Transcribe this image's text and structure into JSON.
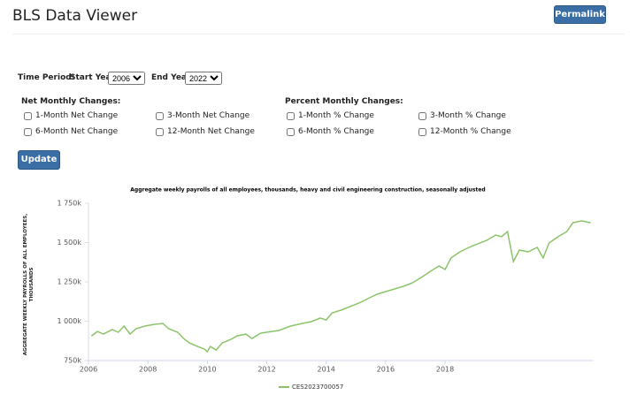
{
  "header": {
    "title": "BLS Data Viewer",
    "button": "Permalink"
  },
  "controls": {
    "time_period_label": "Time Period:",
    "start_year_label": "Start Year:",
    "start_year": "2006",
    "end_year_label": "End Year:",
    "end_year": "2022",
    "net_heading": "Net Monthly Changes:",
    "percent_heading": "Percent Monthly Changes:",
    "net_options": [
      "1-Month Net Change",
      "3-Month Net Change",
      "6-Month Net Change",
      "12-Month Net Change"
    ],
    "percent_options": [
      "1-Month % Change",
      "3-Month % Change",
      "6-Month % Change",
      "12-Month % Change"
    ],
    "update": "Update"
  },
  "chart_data": {
    "type": "line",
    "title": "Aggregate weekly payrolls of all employees, thousands, heavy and civil engineering construction, seasonally adjusted",
    "y_label": "AGGREGATE WEEKLY PAYROLLS OF ALL EMPLOYEES, THOUSANDS",
    "x": [
      2006.1,
      2006.3,
      2006.5,
      2006.8,
      2007.0,
      2007.2,
      2007.4,
      2007.6,
      2007.9,
      2008.2,
      2008.5,
      2008.7,
      2009.0,
      2009.2,
      2009.4,
      2009.6,
      2009.9,
      2010.0,
      2010.1,
      2010.3,
      2010.5,
      2010.8,
      2011.0,
      2011.3,
      2011.5,
      2011.8,
      2012.0,
      2012.4,
      2012.8,
      2013.2,
      2013.5,
      2013.8,
      2014.0,
      2014.2,
      2014.5,
      2014.8,
      2015.1,
      2015.4,
      2015.7,
      2016.0,
      2016.3,
      2016.6,
      2016.9,
      2017.2,
      2017.5,
      2017.8,
      2018.0,
      2018.2,
      2018.5,
      2018.8,
      2019.1,
      2019.4,
      2019.7,
      2019.9,
      2020.1,
      2020.3,
      2020.5,
      2020.8,
      2021.1,
      2021.3,
      2021.5,
      2021.8,
      2022.1,
      2022.3,
      2022.6,
      2022.9
    ],
    "series": [
      {
        "name": "CES2023700057",
        "color": "#8cc46a",
        "values": [
          907,
          935,
          918,
          947,
          930,
          969,
          918,
          952,
          969,
          980,
          986,
          952,
          930,
          890,
          862,
          845,
          823,
          806,
          840,
          817,
          862,
          885,
          907,
          918,
          890,
          924,
          930,
          941,
          969,
          986,
          997,
          1020,
          1008,
          1053,
          1070,
          1093,
          1115,
          1143,
          1171,
          1188,
          1205,
          1222,
          1244,
          1278,
          1317,
          1351,
          1329,
          1402,
          1441,
          1469,
          1492,
          1514,
          1548,
          1537,
          1570,
          1379,
          1452,
          1441,
          1469,
          1402,
          1497,
          1537,
          1570,
          1626,
          1638,
          1626
        ]
      }
    ],
    "xlim": [
      2006,
      2023
    ],
    "ylim": [
      750,
      1750
    ],
    "xticks": [
      2006,
      2008,
      2010,
      2012,
      2014,
      2016,
      2018
    ],
    "yticks": [
      {
        "value": 750,
        "label": "750k"
      },
      {
        "value": 1000,
        "label": "1 000k"
      },
      {
        "value": 1250,
        "label": "1 250k"
      },
      {
        "value": 1500,
        "label": "1 500k"
      },
      {
        "value": 1750,
        "label": "1 750k"
      }
    ],
    "grid": false
  }
}
